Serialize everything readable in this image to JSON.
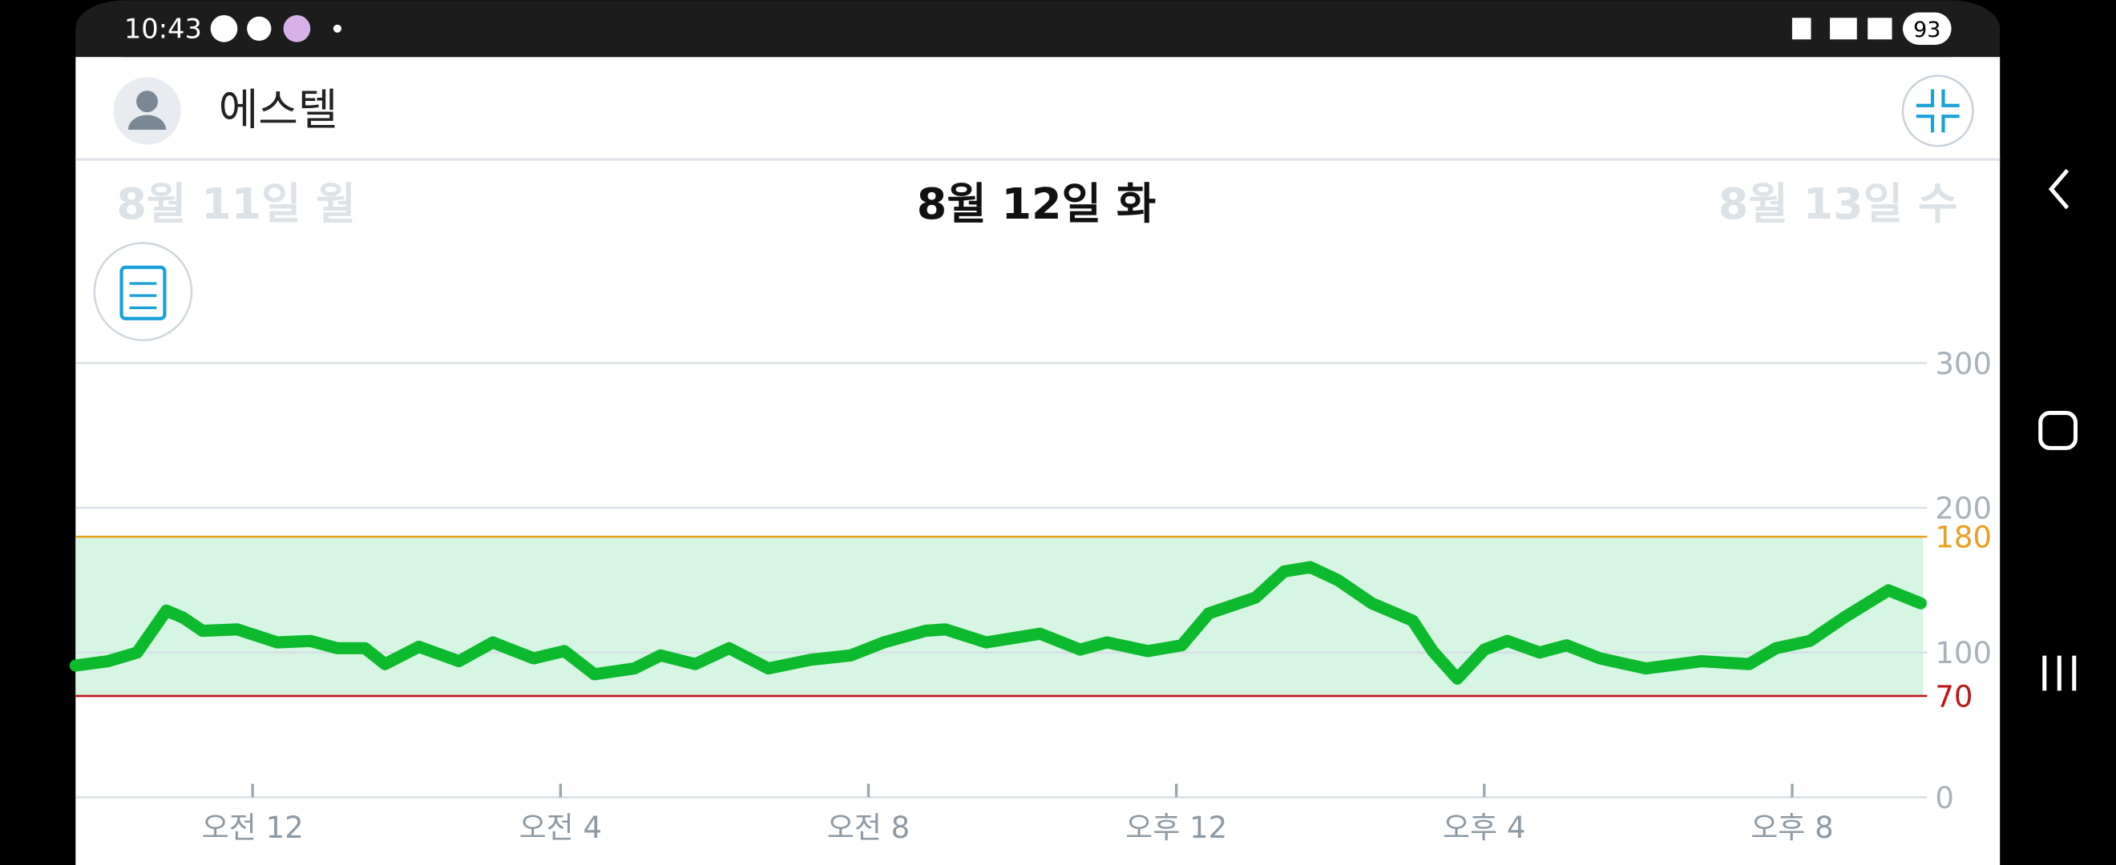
{
  "status_bar": {
    "time": "10:43",
    "battery": "93"
  },
  "header": {
    "title": "에스텔"
  },
  "dates": {
    "previous": "8월 11일 월",
    "current": "8월 12일 화",
    "next": "8월 13일 수"
  },
  "chart_data": {
    "type": "line",
    "x": [
      -2.3,
      -1.88,
      -1.5,
      -1.33,
      -1.12,
      -0.9,
      -0.65,
      -0.2,
      0.32,
      0.75,
      1.1,
      1.46,
      1.72,
      2.16,
      2.68,
      3.12,
      3.65,
      4.05,
      4.44,
      4.96,
      5.3,
      5.75,
      6.19,
      6.7,
      7.25,
      7.77,
      8.2,
      8.74,
      9.0,
      9.53,
      10.23,
      10.75,
      11.1,
      11.63,
      12.07,
      12.42,
      13.03,
      13.4,
      13.74,
      14.1,
      14.54,
      15.07,
      15.33,
      15.65,
      16.0,
      16.3,
      16.72,
      17.07,
      17.5,
      18.1,
      18.82,
      19.44,
      19.79,
      20.23,
      20.67,
      21.25,
      21.67
    ],
    "series": [
      {
        "color": "#0dba2e",
        "values": [
          91,
          94,
          100,
          113,
          129,
          124,
          115,
          116,
          107,
          108,
          103,
          103,
          92,
          104,
          94,
          107,
          96,
          101,
          85,
          89,
          98,
          92,
          103,
          89,
          95,
          98,
          107,
          115,
          116,
          107,
          113,
          102,
          107,
          101,
          105,
          127,
          138,
          156,
          159,
          150,
          134,
          122,
          101,
          82,
          102,
          108,
          100,
          105,
          96,
          89,
          94,
          92,
          103,
          108,
          124,
          143,
          134
        ]
      }
    ],
    "xlim": [
      -2.3,
      21.7
    ],
    "xticks": [
      {
        "value": 0,
        "label": "오전 12"
      },
      {
        "value": 4,
        "label": "오전 4"
      },
      {
        "value": 8,
        "label": "오전 8"
      },
      {
        "value": 12,
        "label": "오후 12"
      },
      {
        "value": 16,
        "label": "오후 4"
      },
      {
        "value": 20,
        "label": "오후 8"
      }
    ],
    "ylim": [
      0,
      300
    ],
    "yticks": [
      0,
      100,
      200,
      300
    ],
    "grid": true,
    "thresholds": [
      {
        "value": 180,
        "color": "#e8a020"
      },
      {
        "value": 70,
        "color": "#c0161a"
      }
    ],
    "range_fill": "#d6f5e2"
  }
}
